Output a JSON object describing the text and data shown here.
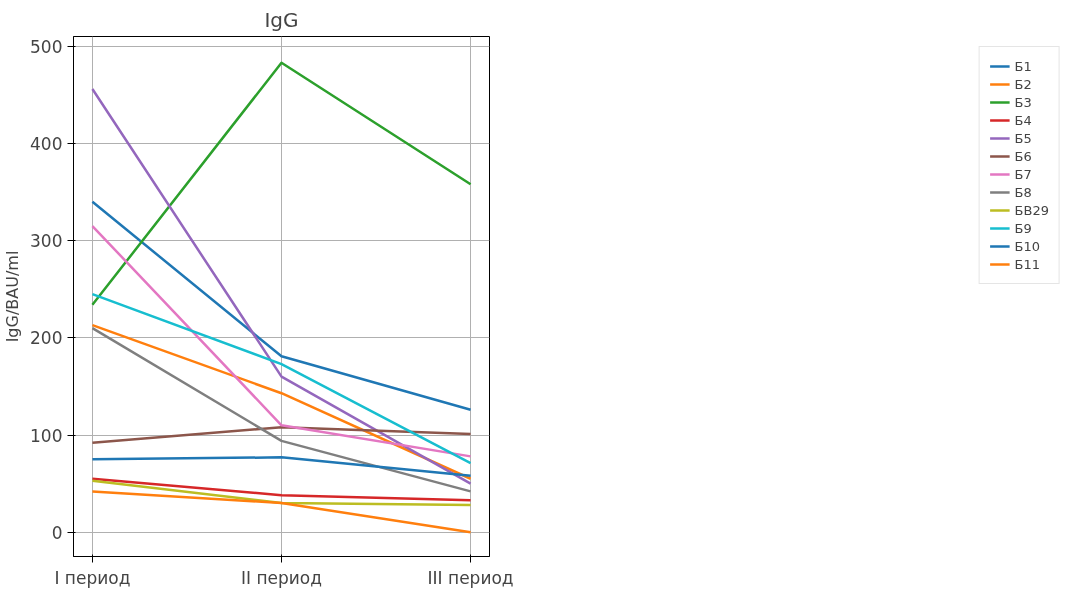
{
  "chart_data": {
    "type": "line",
    "title": "IgG",
    "ylabel": "IgG/BAU/ml",
    "categories": [
      "I период",
      "II период",
      "III период"
    ],
    "ylim": [
      -25,
      510
    ],
    "yticks": [
      0,
      100,
      200,
      300,
      400,
      500
    ],
    "grid": true,
    "legend": "right",
    "line_style": "solid",
    "series": [
      {
        "name": "Б1",
        "color": "#1f77b4",
        "values": [
          340,
          181,
          126
        ]
      },
      {
        "name": "Б2",
        "color": "#ff7f0e",
        "values": [
          213,
          143,
          55
        ]
      },
      {
        "name": "Б3",
        "color": "#2ca02c",
        "values": [
          234,
          483,
          358
        ]
      },
      {
        "name": "Б4",
        "color": "#d62728",
        "values": [
          55,
          38,
          33
        ]
      },
      {
        "name": "Б5",
        "color": "#9467bd",
        "values": [
          456,
          160,
          50
        ]
      },
      {
        "name": "Б6",
        "color": "#8c564b",
        "values": [
          92,
          108,
          101
        ]
      },
      {
        "name": "Б7",
        "color": "#e377c2",
        "values": [
          315,
          110,
          78
        ]
      },
      {
        "name": "Б8",
        "color": "#7f7f7f",
        "values": [
          210,
          94,
          42
        ]
      },
      {
        "name": "БВ29",
        "color": "#bcbd22",
        "values": [
          53,
          30,
          28
        ]
      },
      {
        "name": "Б9",
        "color": "#17becf",
        "values": [
          245,
          173,
          71
        ]
      },
      {
        "name": "Б10",
        "color": "#1f77b4",
        "values": [
          75,
          77,
          58
        ]
      },
      {
        "name": "Б11",
        "color": "#ff7f0e",
        "values": [
          42,
          30,
          0
        ]
      }
    ]
  }
}
